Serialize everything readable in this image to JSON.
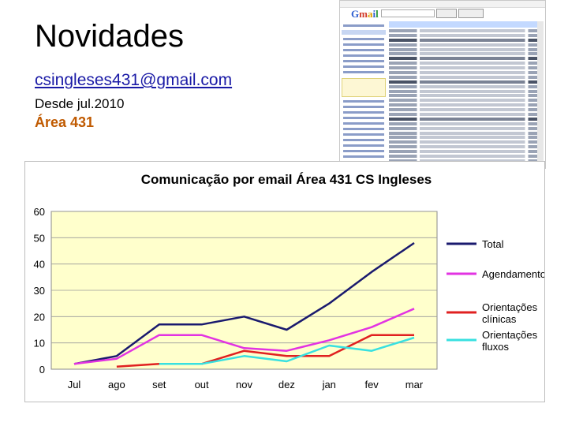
{
  "slide": {
    "title": "Novidades",
    "email": "csingleses431@gmail.com",
    "since": "Desde jul.2010",
    "area": "Área 431"
  },
  "colors": {
    "total": "#1a1a6e",
    "agendamento": "#e233e2",
    "orientacoes_clinicas": "#e02020",
    "orientacoes_fluxos": "#38e0e0",
    "plot_bg": "#ffffcc",
    "email_link": "#1a1aa6",
    "area_text": "#c05a00"
  },
  "chart_data": {
    "type": "line",
    "title": "Comunicação por email Área 431 CS Ingleses",
    "xlabel": "",
    "ylabel": "",
    "categories": [
      "Jul",
      "ago",
      "set",
      "out",
      "nov",
      "dez",
      "jan",
      "fev",
      "mar"
    ],
    "ylim": [
      0,
      60
    ],
    "yticks": [
      "0",
      "10",
      "20",
      "30",
      "40",
      "50",
      "60"
    ],
    "grid": true,
    "legend": "right",
    "series": [
      {
        "name": "Total",
        "color_key": "total",
        "values": [
          2,
          5,
          17,
          17,
          20,
          15,
          25,
          37,
          48
        ]
      },
      {
        "name": "Agendamento",
        "color_key": "agendamento",
        "values": [
          2,
          4,
          13,
          13,
          8,
          7,
          11,
          16,
          23
        ]
      },
      {
        "name": "Orientações clínicas",
        "color_key": "orientacoes_clinicas",
        "values": [
          null,
          1,
          2,
          2,
          7,
          5,
          5,
          13,
          13
        ]
      },
      {
        "name": "Orientações fluxos",
        "color_key": "orientacoes_fluxos",
        "values": [
          null,
          null,
          2,
          2,
          5,
          3,
          9,
          7,
          12
        ]
      }
    ]
  }
}
